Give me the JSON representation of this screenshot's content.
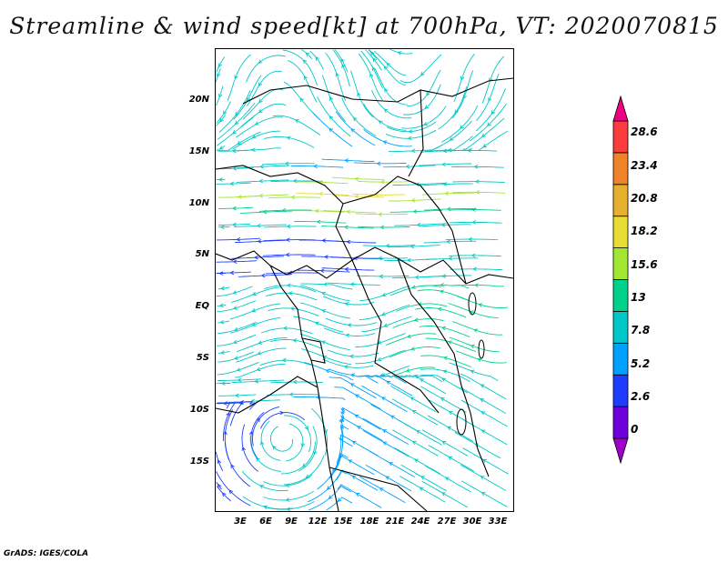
{
  "title": "Streamline & wind speed[kt] at 700hPa, VT: 2020070815",
  "credit": "GrADS: IGES/COLA",
  "map": {
    "lat_labels": [
      "20N",
      "15N",
      "10N",
      "5N",
      "EQ",
      "5S",
      "10S",
      "15S"
    ],
    "lon_labels": [
      "3E",
      "6E",
      "9E",
      "12E",
      "15E",
      "18E",
      "21E",
      "24E",
      "27E",
      "30E",
      "33E"
    ]
  },
  "colorbar": {
    "labels": [
      "0",
      "2.6",
      "5.2",
      "7.8",
      "13",
      "15.6",
      "18.2",
      "20.8",
      "23.4",
      "28.6"
    ],
    "colors": [
      "#a000c8",
      "#6e00dc",
      "#1e3cff",
      "#00a0ff",
      "#00c8c8",
      "#00d28c",
      "#a0e632",
      "#e6dc32",
      "#e6af2d",
      "#f08228",
      "#fa3c3c",
      "#f00082"
    ]
  }
}
